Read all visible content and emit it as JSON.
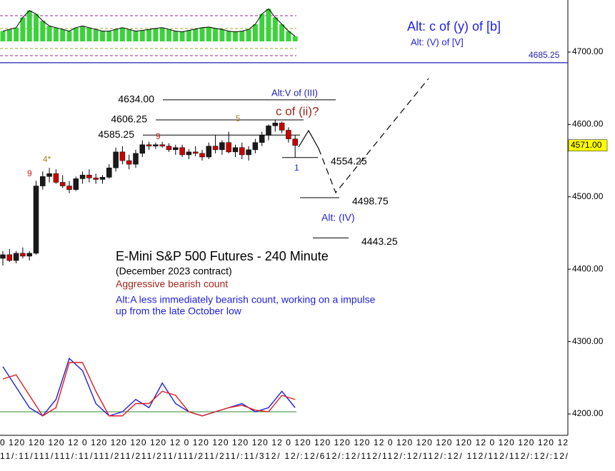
{
  "chart_data": {
    "type": "candlestick",
    "title": "E-Mini S&P 500 Futures - 240 Minute",
    "subtitle": "(December 2023 contract)",
    "notes": [
      "Aggressive bearish count",
      "Alt:A less immediately bearish count, working on a impulse",
      "up from the late October low"
    ],
    "ylim": [
      4175.4,
      4771.9
    ],
    "yticks": [
      {
        "value": 4200,
        "label": "4200.00"
      },
      {
        "value": 4300,
        "label": "4300.00"
      },
      {
        "value": 4400,
        "label": "4400.00"
      },
      {
        "value": 4500,
        "label": "4500.00"
      },
      {
        "value": 4600,
        "label": "4600.00"
      },
      {
        "value": 4700,
        "label": "4700.00"
      }
    ],
    "up_color": "#1a1a1a",
    "down_color": "#cc0000",
    "candles": [
      [
        4415,
        4425,
        4405,
        4420
      ],
      [
        4420,
        4428,
        4410,
        4412
      ],
      [
        4412,
        4425,
        4408,
        4422
      ],
      [
        4422,
        4430,
        4415,
        4418
      ],
      [
        4418,
        4425,
        4412,
        4422
      ],
      [
        4422,
        4522,
        4420,
        4515
      ],
      [
        4515,
        4535,
        4510,
        4528
      ],
      [
        4528,
        4540,
        4520,
        4532
      ],
      [
        4532,
        4538,
        4518,
        4520
      ],
      [
        4520,
        4530,
        4512,
        4515
      ],
      [
        4515,
        4522,
        4505,
        4510
      ],
      [
        4510,
        4528,
        4508,
        4525
      ],
      [
        4525,
        4535,
        4518,
        4530
      ],
      [
        4530,
        4538,
        4520,
        4526
      ],
      [
        4526,
        4532,
        4518,
        4524
      ],
      [
        4524,
        4530,
        4518,
        4527
      ],
      [
        4527,
        4545,
        4525,
        4540
      ],
      [
        4540,
        4568,
        4535,
        4562
      ],
      [
        4562,
        4570,
        4545,
        4550
      ],
      [
        4550,
        4558,
        4538,
        4545
      ],
      [
        4545,
        4565,
        4540,
        4560
      ],
      [
        4560,
        4578,
        4555,
        4572
      ],
      [
        4572,
        4576,
        4565,
        4570
      ],
      [
        4570,
        4575,
        4566,
        4572
      ],
      [
        4572,
        4576,
        4568,
        4570
      ],
      [
        4570,
        4574,
        4562,
        4565
      ],
      [
        4565,
        4572,
        4558,
        4568
      ],
      [
        4568,
        4572,
        4555,
        4558
      ],
      [
        4558,
        4566,
        4552,
        4562
      ],
      [
        4562,
        4570,
        4556,
        4560
      ],
      [
        4560,
        4565,
        4550,
        4555
      ],
      [
        4555,
        4575,
        4552,
        4570
      ],
      [
        4570,
        4585,
        4560,
        4565
      ],
      [
        4565,
        4578,
        4558,
        4575
      ],
      [
        4575,
        4590,
        4560,
        4562
      ],
      [
        4562,
        4572,
        4555,
        4568
      ],
      [
        4568,
        4575,
        4552,
        4558
      ],
      [
        4558,
        4570,
        4550,
        4565
      ],
      [
        4565,
        4580,
        4560,
        4575
      ],
      [
        4575,
        4590,
        4570,
        4585
      ],
      [
        4585,
        4600,
        4578,
        4598
      ],
      [
        4598,
        4606,
        4590,
        4602
      ],
      [
        4602,
        4604,
        4588,
        4592
      ],
      [
        4592,
        4596,
        4575,
        4580
      ],
      [
        4580,
        4585,
        4554,
        4571
      ]
    ],
    "levels": [
      {
        "value": 4634,
        "label": "4634.00"
      },
      {
        "value": 4606.25,
        "label": "4606.25"
      },
      {
        "value": 4585.25,
        "label": "4585.25"
      },
      {
        "value": 4554.25,
        "label": "4554.25"
      },
      {
        "value": 4498.75,
        "label": "4498.75"
      },
      {
        "value": 4443.25,
        "label": "4443.25"
      }
    ],
    "key_level": {
      "value": 4685.25,
      "label": "4685.25",
      "color": "#1f1fb4"
    },
    "last_price": {
      "value": 4571,
      "label": "4571.00",
      "color": "#ffff00"
    },
    "annotations": [
      "Alt: c of (y) of [b]",
      "Alt: (V) of [V]",
      "Alt:V of (III)",
      "c of (ii)?",
      "5",
      "9",
      "9",
      "4*",
      "1",
      "Alt: (IV)"
    ],
    "oscillator": {
      "ylim": [
        0,
        100
      ],
      "baseline": 20,
      "baseline_color": "#2e8b2e",
      "series": [
        {
          "color": "#1f1fe0",
          "values": [
            75,
            50,
            25,
            15,
            35,
            85,
            70,
            30,
            15,
            20,
            35,
            25,
            55,
            30,
            20,
            15,
            20,
            25,
            30,
            20,
            25,
            45,
            25
          ]
        },
        {
          "color": "#e01f1f",
          "values": [
            60,
            65,
            40,
            15,
            25,
            80,
            80,
            45,
            15,
            15,
            30,
            30,
            45,
            40,
            20,
            15,
            20,
            25,
            28,
            22,
            20,
            40,
            35
          ]
        }
      ]
    },
    "top_indicator": {
      "ylim": [
        0,
        100
      ],
      "color": "#3cd23c",
      "values": [
        30,
        35,
        40,
        70,
        90,
        80,
        60,
        45,
        40,
        35,
        30,
        40,
        45,
        40,
        35,
        30,
        30,
        35,
        40,
        35,
        30,
        32,
        35,
        38,
        40,
        35,
        30,
        28,
        32,
        36,
        40,
        42,
        38,
        35,
        30,
        28,
        30,
        35,
        50,
        80,
        95,
        70,
        50,
        30,
        15
      ]
    },
    "time_axis": {
      "row1": "0 120 120 120 12 0 120 120 120 120 12 0 120 120 120 120 12 0 120 120 120 120 12 0 120 120 120 120 12 0 120 120 120 12",
      "row2": "11/:11/111/111/:11/111/211/211/211/111/211/211/:11/312/ 12/:12/612/:12/112/112/:12/112/:12/ 112/112/112/:12/:12/"
    }
  }
}
